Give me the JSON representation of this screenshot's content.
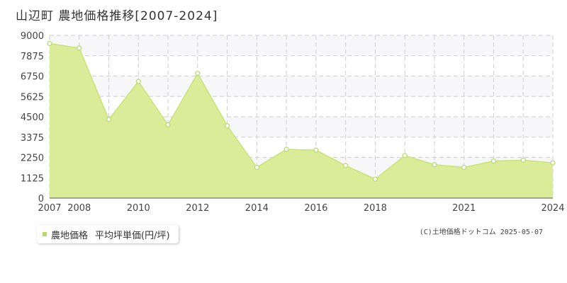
{
  "title": "山辺町 農地価格推移[2007-2024]",
  "legend": {
    "label": "農地価格",
    "unit_label": "平均坪単価(円/坪)"
  },
  "credit": "(C)土地価格ドットコム 2025-05-07",
  "colors": {
    "fill": "#dbec98",
    "line": "#c9e27a",
    "band": "#f7f7f9",
    "grid": "#cfcfcf",
    "marker": "#b5d96a"
  },
  "chart_data": {
    "type": "area",
    "x": [
      2007,
      2008,
      2009,
      2010,
      2011,
      2012,
      2013,
      2014,
      2015,
      2016,
      2017,
      2018,
      2019,
      2020,
      2021,
      2022,
      2023,
      2024
    ],
    "series": [
      {
        "name": "農地価格",
        "values": [
          8550,
          8300,
          4350,
          6450,
          4050,
          6900,
          4000,
          1700,
          2700,
          2650,
          1800,
          1050,
          2350,
          1850,
          1700,
          2050,
          2100,
          1950
        ]
      }
    ],
    "yticks": [
      0,
      1125,
      2250,
      3375,
      4500,
      5625,
      6750,
      7875,
      9000
    ],
    "xticks": [
      2007,
      2008,
      2010,
      2012,
      2014,
      2016,
      2018,
      2021,
      2024
    ],
    "ylim": [
      0,
      9000
    ],
    "xlim": [
      2007,
      2024
    ],
    "grid": true
  }
}
